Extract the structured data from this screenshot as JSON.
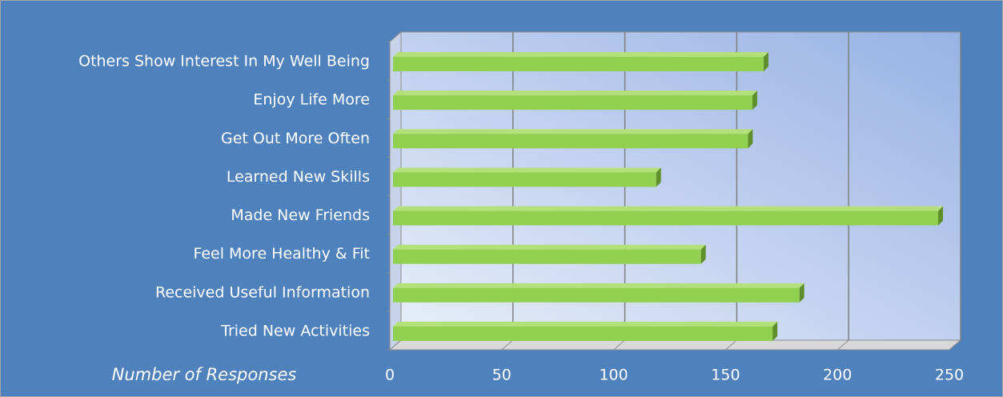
{
  "chart_data": {
    "type": "bar",
    "orientation": "horizontal",
    "three_d": true,
    "categories": [
      "Others Show Interest In My Well Being",
      "Enjoy Life More",
      "Get Out More Often",
      "Learned New Skills",
      "Made New Friends",
      "Feel More Healthy & Fit",
      "Received Useful Information",
      "Tried New Activities"
    ],
    "values": [
      167,
      162,
      160,
      119,
      245,
      139,
      183,
      171
    ],
    "color": "#92d050",
    "x_label": "Number of Responses",
    "xlim": [
      0,
      250
    ],
    "xticks": [
      0,
      50,
      100,
      150,
      200,
      250
    ],
    "grid": true
  }
}
